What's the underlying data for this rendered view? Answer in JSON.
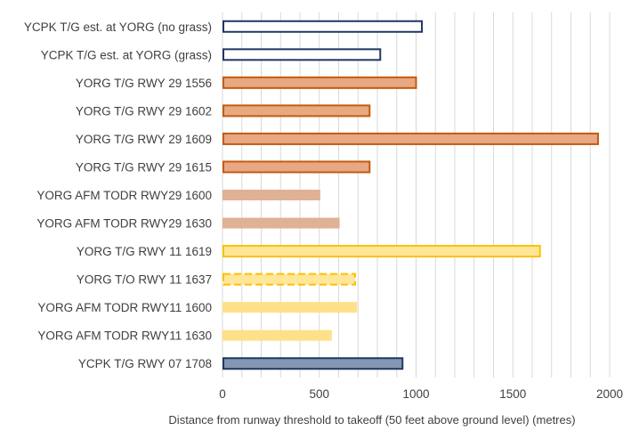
{
  "chart_data": {
    "type": "bar",
    "orientation": "horizontal",
    "xlabel": "Distance from runway threshold to takeoff (50 feet above ground level) (metres)",
    "xlim": [
      0,
      2000
    ],
    "xticks": [
      0,
      500,
      1000,
      1500,
      2000
    ],
    "grid": "vertical, every 100",
    "legend": "none",
    "categories": [
      "YCPK T/G est. at YORG (no grass)",
      "YCPK T/G est. at YORG (grass)",
      "YORG T/G RWY 29 1556",
      "YORG T/G RWY 29 1602",
      "YORG T/G RWY 29 1609",
      "YORG T/G RWY 29 1615",
      "YORG AFM TODR RWY29 1600",
      "YORG AFM TODR RWY29 1630",
      "YORG T/G RWY 11 1619",
      "YORG T/O RWY 11 1637",
      "YORG AFM TODR RWY11 1600",
      "YORG AFM TODR RWY11 1630",
      "YCPK T/G RWY 07 1708"
    ],
    "values": [
      1030,
      815,
      1000,
      760,
      1940,
      760,
      505,
      605,
      1640,
      685,
      695,
      565,
      930
    ],
    "styles": [
      {
        "fill": "#ffffff",
        "stroke": "#1f3864",
        "dash": false
      },
      {
        "fill": "#ffffff",
        "stroke": "#1f3864",
        "dash": false
      },
      {
        "fill": "#e8a882",
        "stroke": "#c55a11",
        "dash": false
      },
      {
        "fill": "#e8a882",
        "stroke": "#c55a11",
        "dash": false
      },
      {
        "fill": "#e8a882",
        "stroke": "#c55a11",
        "dash": false
      },
      {
        "fill": "#e8a882",
        "stroke": "#c55a11",
        "dash": false
      },
      {
        "fill": "#dfb196",
        "stroke": "none",
        "dash": false
      },
      {
        "fill": "#dfb196",
        "stroke": "none",
        "dash": false
      },
      {
        "fill": "#ffe699",
        "stroke": "#ffc000",
        "dash": false
      },
      {
        "fill": "#ffe699",
        "stroke": "#ffc000",
        "dash": true
      },
      {
        "fill": "#ffe08a",
        "stroke": "none",
        "dash": false
      },
      {
        "fill": "#ffe08a",
        "stroke": "none",
        "dash": false
      },
      {
        "fill": "#8497b0",
        "stroke": "#1f3864",
        "dash": false
      }
    ],
    "colors": {
      "grid": "#d9d9d9",
      "text": "#404040"
    }
  }
}
